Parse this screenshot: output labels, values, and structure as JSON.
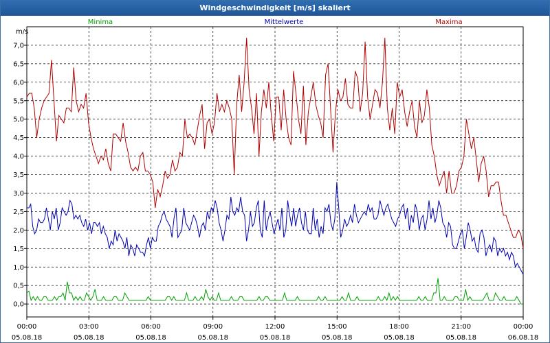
{
  "title": "Windgeschwindigkeit [m/s] skaliert",
  "chart_data": {
    "type": "line",
    "title": "Windgeschwindigkeit [m/s] skaliert",
    "ylabel": "m/s",
    "xlabel": "",
    "ylim": [
      -0.35,
      7.5
    ],
    "xlim": [
      0,
      24
    ],
    "grid": true,
    "legend_placement": "top",
    "y_ticks": [
      "0,0",
      "0,5",
      "1,0",
      "1,5",
      "2,0",
      "2,5",
      "3,0",
      "3,5",
      "4,0",
      "4,5",
      "5,0",
      "5,5",
      "6,0",
      "6,5",
      "7,0"
    ],
    "x_ticks": [
      {
        "time": "00:00",
        "date": "05.08.18"
      },
      {
        "time": "03:00",
        "date": "05.08.18"
      },
      {
        "time": "06:00",
        "date": "05.08.18"
      },
      {
        "time": "09:00",
        "date": "05.08.18"
      },
      {
        "time": "12:00",
        "date": "05.08.18"
      },
      {
        "time": "15:00",
        "date": "05.08.18"
      },
      {
        "time": "18:00",
        "date": "05.08.18"
      },
      {
        "time": "21:00",
        "date": "05.08.18"
      },
      {
        "time": "00:00",
        "date": "06.08.18"
      }
    ],
    "series": [
      {
        "name": "Minima",
        "color": "#00a000",
        "values": [
          0.3,
          0.35,
          0.1,
          0.2,
          0.1,
          0.2,
          0.1,
          0.1,
          0.2,
          0.2,
          0.1,
          0.1,
          0.1,
          0.2,
          0.1,
          0.2,
          0.2,
          0.3,
          0.1,
          0.6,
          0.3,
          0.3,
          0.1,
          0.2,
          0.1,
          0.2,
          0.1,
          0.1,
          0.3,
          0.2,
          0.1,
          0.2,
          0.4,
          0.1,
          0.1,
          0.1,
          0.2,
          0.1,
          0.1,
          0.1,
          0.1,
          0.2,
          0.2,
          0.1,
          0.1,
          0.1,
          0.3,
          0.2,
          0.1,
          0.1,
          0.1,
          0.1,
          0.1,
          0.1,
          0.1,
          0.1,
          0.1,
          0.2,
          0.1,
          0.1,
          0.1,
          0.1,
          0.1,
          0.1,
          0.1,
          0.1,
          0.2,
          0.2,
          0.1,
          0.2,
          0.1,
          0.1,
          0.1,
          0.1,
          0.1,
          0.3,
          0.1,
          0.1,
          0.1,
          0.2,
          0.1,
          0.1,
          0.2,
          0.1,
          0.4,
          0.2,
          0.1,
          0.2,
          0.1,
          0.1,
          0.3,
          0.1,
          0.1,
          0.1,
          0.1,
          0.1,
          0.2,
          0.1,
          0.1,
          0.1,
          0.2,
          0.2,
          0.1,
          0.1,
          0.1,
          0.1,
          0.1,
          0.1,
          0.1,
          0.2,
          0.1,
          0.1,
          0.2,
          0.2,
          0.1,
          0.1,
          0.1,
          0.1,
          0.1,
          0.1,
          0.1,
          0.3,
          0.1,
          0.1,
          0.1,
          0.1,
          0.1,
          0.2,
          0.1,
          0.1,
          0.1,
          0.1,
          0.1,
          0.1,
          0.1,
          0.1,
          0.1,
          0.2,
          0.1,
          0.1,
          0.2,
          0.1,
          0.1,
          0.1,
          0.1,
          0.1,
          0.1,
          0.1,
          0.2,
          0.1,
          0.1,
          0.3,
          0.1,
          0.1,
          0.1,
          0.2,
          0.1,
          0.1,
          0.1,
          0.1,
          0.1,
          0.1,
          0.1,
          0.1,
          0.1,
          0.2,
          0.1,
          0.1,
          0.2,
          0.1,
          0.3,
          0.1,
          0.2,
          0.1,
          0.2,
          0.1,
          0.1,
          0.1,
          0.1,
          0.1,
          0.1,
          0.1,
          0.1,
          0.1,
          0.2,
          0.1,
          0.1,
          0.2,
          0.1,
          0.1,
          0.1,
          0.3,
          0.3,
          0.7,
          0.1,
          0.1,
          0.2,
          0.1,
          0.1,
          0.1,
          0.1,
          0.2,
          0.2,
          0.1,
          0.1,
          0.1,
          0.4,
          0.1,
          0.2,
          0.1,
          0.1,
          0.1,
          0.1,
          0.1,
          0.1,
          0.2,
          0.3,
          0.1,
          0.1,
          0.1,
          0.3,
          0.2,
          0.1,
          0.1,
          0.2,
          0.1,
          0.1,
          0.1,
          0.1,
          0.1,
          0.2,
          0.1,
          0.0,
          0.0
        ]
      },
      {
        "name": "Mittelwerte",
        "color": "#0000b0",
        "values": [
          2.6,
          2.6,
          2.7,
          2.1,
          1.9,
          2.0,
          2.3,
          2.2,
          2.2,
          2.3,
          2.6,
          2.3,
          2.0,
          2.5,
          2.3,
          2.6,
          2.0,
          2.2,
          2.6,
          2.5,
          2.4,
          2.5,
          2.8,
          2.7,
          2.3,
          2.4,
          2.3,
          2.4,
          2.2,
          2.1,
          2.3,
          2.0,
          2.2,
          1.9,
          2.2,
          2.2,
          2.1,
          2.2,
          1.9,
          2.1,
          1.9,
          1.8,
          1.5,
          1.7,
          1.6,
          2.0,
          1.7,
          1.9,
          1.8,
          1.7,
          1.5,
          1.8,
          1.3,
          1.6,
          1.5,
          1.3,
          1.6,
          1.5,
          1.4,
          1.4,
          1.3,
          1.6,
          1.8,
          1.5,
          1.8,
          1.7,
          1.7,
          2.1,
          2.2,
          2.4,
          2.5,
          2.3,
          2.2,
          2.1,
          1.8,
          2.3,
          2.6,
          1.8,
          1.9,
          2.0,
          2.6,
          2.2,
          2.1,
          2.0,
          2.2,
          2.4,
          2.3,
          2.1,
          1.8,
          2.1,
          2.2,
          2.0,
          2.5,
          2.3,
          2.6,
          2.5,
          2.8,
          2.6,
          2.2,
          2.0,
          1.7,
          2.0,
          2.4,
          2.3,
          2.9,
          2.5,
          2.4,
          2.6,
          2.5,
          2.9,
          2.5,
          2.4,
          1.7,
          2.0,
          2.5,
          2.1,
          2.2,
          2.6,
          2.8,
          2.0,
          1.8,
          2.8,
          2.0,
          2.3,
          2.5,
          2.2,
          1.9,
          2.1,
          2.3,
          2.0,
          2.6,
          1.8,
          2.0,
          2.8,
          2.4,
          2.1,
          2.6,
          2.1,
          2.4,
          2.6,
          2.2,
          2.0,
          2.5,
          2.0,
          1.9,
          1.9,
          2.6,
          2.0,
          2.3,
          1.8,
          2.1,
          1.9,
          2.6,
          2.5,
          2.7,
          2.2,
          2.0,
          2.3,
          3.3,
          2.6,
          1.8,
          2.0,
          2.3,
          2.1,
          2.2,
          2.4,
          2.2,
          2.7,
          2.4,
          2.2,
          2.3,
          2.4,
          2.5,
          2.4,
          2.7,
          2.5,
          2.6,
          2.3,
          2.3,
          2.4,
          2.8,
          2.6,
          2.4,
          2.6,
          2.7,
          2.5,
          2.3,
          2.2,
          2.1,
          2.3,
          2.4,
          2.6,
          2.7,
          2.3,
          2.6,
          2.0,
          2.4,
          2.2,
          2.7,
          2.5,
          2.0,
          2.3,
          2.4,
          2.0,
          2.3,
          2.8,
          2.3,
          2.6,
          2.2,
          2.4,
          2.8,
          2.6,
          2.2,
          2.1,
          1.8,
          2.2,
          2.1,
          1.6,
          1.5,
          1.5,
          1.7,
          1.9,
          2.0,
          1.5,
          1.8,
          2.2,
          2.0,
          1.7,
          1.8,
          1.5,
          1.4,
          1.9,
          2.0,
          1.8,
          1.3,
          1.5,
          1.6,
          1.4,
          1.8,
          1.7,
          1.3,
          1.5,
          1.4,
          1.5,
          1.3,
          1.4,
          1.2,
          1.4,
          1.3,
          1.0,
          1.1,
          1.0,
          0.9,
          0.8
        ]
      },
      {
        "name": "Maxima",
        "color": "#b00000",
        "values": [
          5.6,
          5.7,
          5.7,
          5.3,
          4.5,
          5.0,
          5.3,
          5.5,
          5.6,
          5.7,
          6.6,
          5.5,
          4.4,
          5.1,
          5.0,
          4.9,
          5.3,
          5.3,
          5.2,
          6.4,
          5.5,
          5.2,
          5.4,
          5.3,
          5.7,
          4.9,
          4.5,
          4.2,
          4.0,
          3.8,
          4.0,
          3.9,
          4.2,
          3.8,
          3.6,
          4.6,
          4.6,
          4.5,
          4.4,
          4.9,
          4.4,
          4.1,
          3.7,
          3.6,
          3.7,
          3.6,
          4.0,
          4.1,
          3.6,
          3.6,
          3.5,
          3.3,
          2.6,
          3.1,
          2.9,
          3.2,
          3.6,
          3.4,
          3.5,
          3.9,
          3.6,
          3.7,
          4.1,
          4.0,
          5.0,
          4.5,
          4.6,
          4.5,
          4.3,
          4.7,
          5.1,
          5.4,
          4.2,
          4.9,
          5.0,
          4.6,
          4.9,
          5.7,
          5.2,
          5.4,
          5.2,
          5.5,
          5.3,
          5.0,
          3.5,
          5.4,
          6.2,
          5.2,
          6.0,
          7.2,
          5.8,
          5.3,
          4.6,
          5.7,
          4.0,
          5.2,
          5.8,
          5.3,
          6.0,
          5.1,
          4.4,
          5.6,
          5.6,
          4.7,
          5.8,
          5.0,
          4.5,
          4.3,
          6.3,
          5.7,
          5.0,
          4.6,
          5.9,
          4.3,
          5.2,
          5.6,
          6.0,
          5.4,
          5.1,
          4.9,
          4.5,
          6.2,
          6.5,
          5.3,
          4.1,
          5.2,
          5.8,
          5.5,
          5.6,
          6.1,
          5.4,
          5.3,
          5.3,
          6.3,
          6.1,
          5.2,
          5.7,
          7.1,
          5.6,
          5.0,
          5.4,
          5.8,
          5.7,
          5.3,
          6.0,
          7.2,
          5.3,
          4.7,
          5.3,
          4.6,
          6.0,
          5.6,
          5.8,
          5.2,
          4.8,
          5.2,
          5.5,
          4.8,
          4.5,
          5.5,
          4.9,
          5.1,
          5.8,
          5.3,
          4.3,
          4.0,
          3.5,
          3.2,
          3.4,
          3.6,
          3.0,
          3.6,
          3.0,
          3.0,
          3.2,
          3.6,
          3.7,
          4.0,
          5.0,
          4.6,
          4.2,
          4.5,
          3.9,
          3.3,
          3.8,
          4.0,
          3.6,
          2.9,
          3.2,
          3.2,
          3.3,
          3.3,
          2.8,
          2.4,
          2.4,
          2.2,
          2.0,
          1.8,
          1.8,
          2.0,
          1.9,
          1.5
        ]
      }
    ]
  }
}
